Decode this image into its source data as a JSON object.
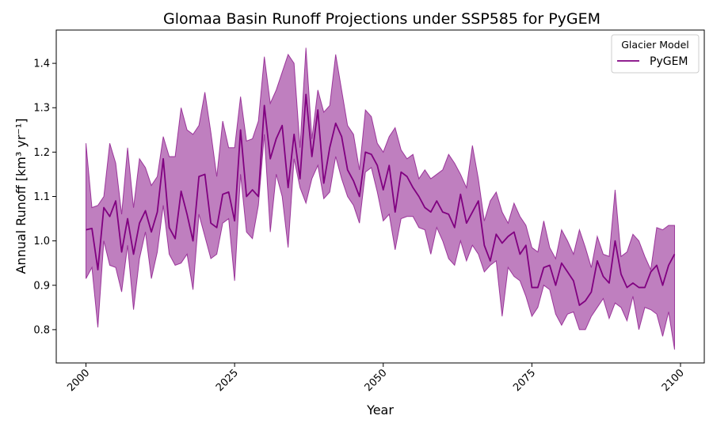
{
  "chart_data": {
    "type": "line",
    "title": "Glomaa Basin Runoff Projections under SSP585 for PyGEM",
    "xlabel": "Year",
    "ylabel": "Annual Runoff [km³ yr⁻¹]",
    "xlim": [
      1995,
      2104
    ],
    "ylim": [
      0.725,
      1.475
    ],
    "xticks": [
      2000,
      2025,
      2050,
      2075,
      2100
    ],
    "yticks": [
      0.8,
      0.9,
      1.0,
      1.1,
      1.2,
      1.3,
      1.4
    ],
    "grid": false,
    "legend": {
      "title": "Glacier Model",
      "placement": "top-right"
    },
    "colors": {
      "line": "#800080",
      "band": "#800080"
    },
    "series": [
      {
        "name": "PyGEM",
        "x": [
          2000,
          2001,
          2002,
          2003,
          2004,
          2005,
          2006,
          2007,
          2008,
          2009,
          2010,
          2011,
          2012,
          2013,
          2014,
          2015,
          2016,
          2017,
          2018,
          2019,
          2020,
          2021,
          2022,
          2023,
          2024,
          2025,
          2026,
          2027,
          2028,
          2029,
          2030,
          2031,
          2032,
          2033,
          2034,
          2035,
          2036,
          2037,
          2038,
          2039,
          2040,
          2041,
          2042,
          2043,
          2044,
          2045,
          2046,
          2047,
          2048,
          2049,
          2050,
          2051,
          2052,
          2053,
          2054,
          2055,
          2056,
          2057,
          2058,
          2059,
          2060,
          2061,
          2062,
          2063,
          2064,
          2065,
          2066,
          2067,
          2068,
          2069,
          2070,
          2071,
          2072,
          2073,
          2074,
          2075,
          2076,
          2077,
          2078,
          2079,
          2080,
          2081,
          2082,
          2083,
          2084,
          2085,
          2086,
          2087,
          2088,
          2089,
          2090,
          2091,
          2092,
          2093,
          2094,
          2095,
          2096,
          2097,
          2098,
          2099
        ],
        "values": [
          1.025,
          1.028,
          0.935,
          1.075,
          1.055,
          1.09,
          0.975,
          1.05,
          0.97,
          1.04,
          1.068,
          1.02,
          1.065,
          1.185,
          1.03,
          1.005,
          1.112,
          1.06,
          1.0,
          1.145,
          1.15,
          1.04,
          1.03,
          1.105,
          1.11,
          1.045,
          1.25,
          1.1,
          1.115,
          1.1,
          1.305,
          1.185,
          1.23,
          1.26,
          1.12,
          1.24,
          1.14,
          1.33,
          1.19,
          1.295,
          1.13,
          1.21,
          1.265,
          1.235,
          1.16,
          1.135,
          1.1,
          1.2,
          1.195,
          1.17,
          1.115,
          1.17,
          1.065,
          1.155,
          1.145,
          1.12,
          1.1,
          1.075,
          1.065,
          1.09,
          1.065,
          1.06,
          1.03,
          1.105,
          1.04,
          1.065,
          1.09,
          0.99,
          0.955,
          1.015,
          0.995,
          1.01,
          1.02,
          0.97,
          0.99,
          0.895,
          0.895,
          0.94,
          0.945,
          0.9,
          0.95,
          0.93,
          0.91,
          0.855,
          0.865,
          0.885,
          0.955,
          0.92,
          0.905,
          1.0,
          0.925,
          0.895,
          0.905,
          0.895,
          0.895,
          0.93,
          0.945,
          0.9,
          0.945,
          0.97
        ],
        "lower": [
          0.915,
          0.94,
          0.805,
          1.0,
          0.945,
          0.94,
          0.885,
          0.99,
          0.845,
          0.96,
          1.02,
          0.915,
          0.975,
          1.08,
          0.97,
          0.945,
          0.95,
          0.97,
          0.89,
          1.06,
          1.01,
          0.96,
          0.97,
          1.04,
          1.05,
          0.91,
          1.15,
          1.02,
          1.005,
          1.08,
          1.24,
          1.02,
          1.15,
          1.1,
          0.985,
          1.185,
          1.12,
          1.085,
          1.14,
          1.17,
          1.095,
          1.11,
          1.19,
          1.14,
          1.1,
          1.08,
          1.04,
          1.155,
          1.165,
          1.11,
          1.045,
          1.06,
          0.98,
          1.05,
          1.055,
          1.055,
          1.03,
          1.025,
          0.97,
          1.03,
          1.0,
          0.96,
          0.945,
          1.0,
          0.955,
          0.99,
          0.97,
          0.93,
          0.945,
          0.955,
          0.83,
          0.94,
          0.92,
          0.91,
          0.875,
          0.83,
          0.85,
          0.9,
          0.89,
          0.835,
          0.81,
          0.835,
          0.84,
          0.8,
          0.8,
          0.83,
          0.85,
          0.87,
          0.825,
          0.86,
          0.85,
          0.82,
          0.875,
          0.8,
          0.85,
          0.845,
          0.835,
          0.785,
          0.84,
          0.755
        ],
        "upper": [
          1.22,
          1.075,
          1.08,
          1.1,
          1.22,
          1.175,
          1.06,
          1.21,
          1.075,
          1.185,
          1.165,
          1.125,
          1.145,
          1.235,
          1.19,
          1.19,
          1.3,
          1.25,
          1.24,
          1.26,
          1.335,
          1.245,
          1.145,
          1.27,
          1.21,
          1.21,
          1.325,
          1.225,
          1.23,
          1.27,
          1.415,
          1.31,
          1.34,
          1.38,
          1.42,
          1.4,
          1.21,
          1.435,
          1.23,
          1.34,
          1.29,
          1.305,
          1.42,
          1.34,
          1.26,
          1.24,
          1.16,
          1.295,
          1.28,
          1.22,
          1.2,
          1.235,
          1.255,
          1.205,
          1.185,
          1.195,
          1.14,
          1.16,
          1.14,
          1.15,
          1.16,
          1.195,
          1.175,
          1.15,
          1.12,
          1.215,
          1.14,
          1.045,
          1.09,
          1.11,
          1.065,
          1.04,
          1.085,
          1.055,
          1.035,
          0.985,
          0.975,
          1.045,
          0.985,
          0.96,
          1.025,
          1.0,
          0.97,
          1.025,
          0.985,
          0.94,
          1.01,
          0.97,
          0.965,
          1.115,
          0.965,
          0.975,
          1.015,
          1.0,
          0.965,
          0.935,
          1.03,
          1.025,
          1.035,
          1.035
        ]
      }
    ]
  }
}
